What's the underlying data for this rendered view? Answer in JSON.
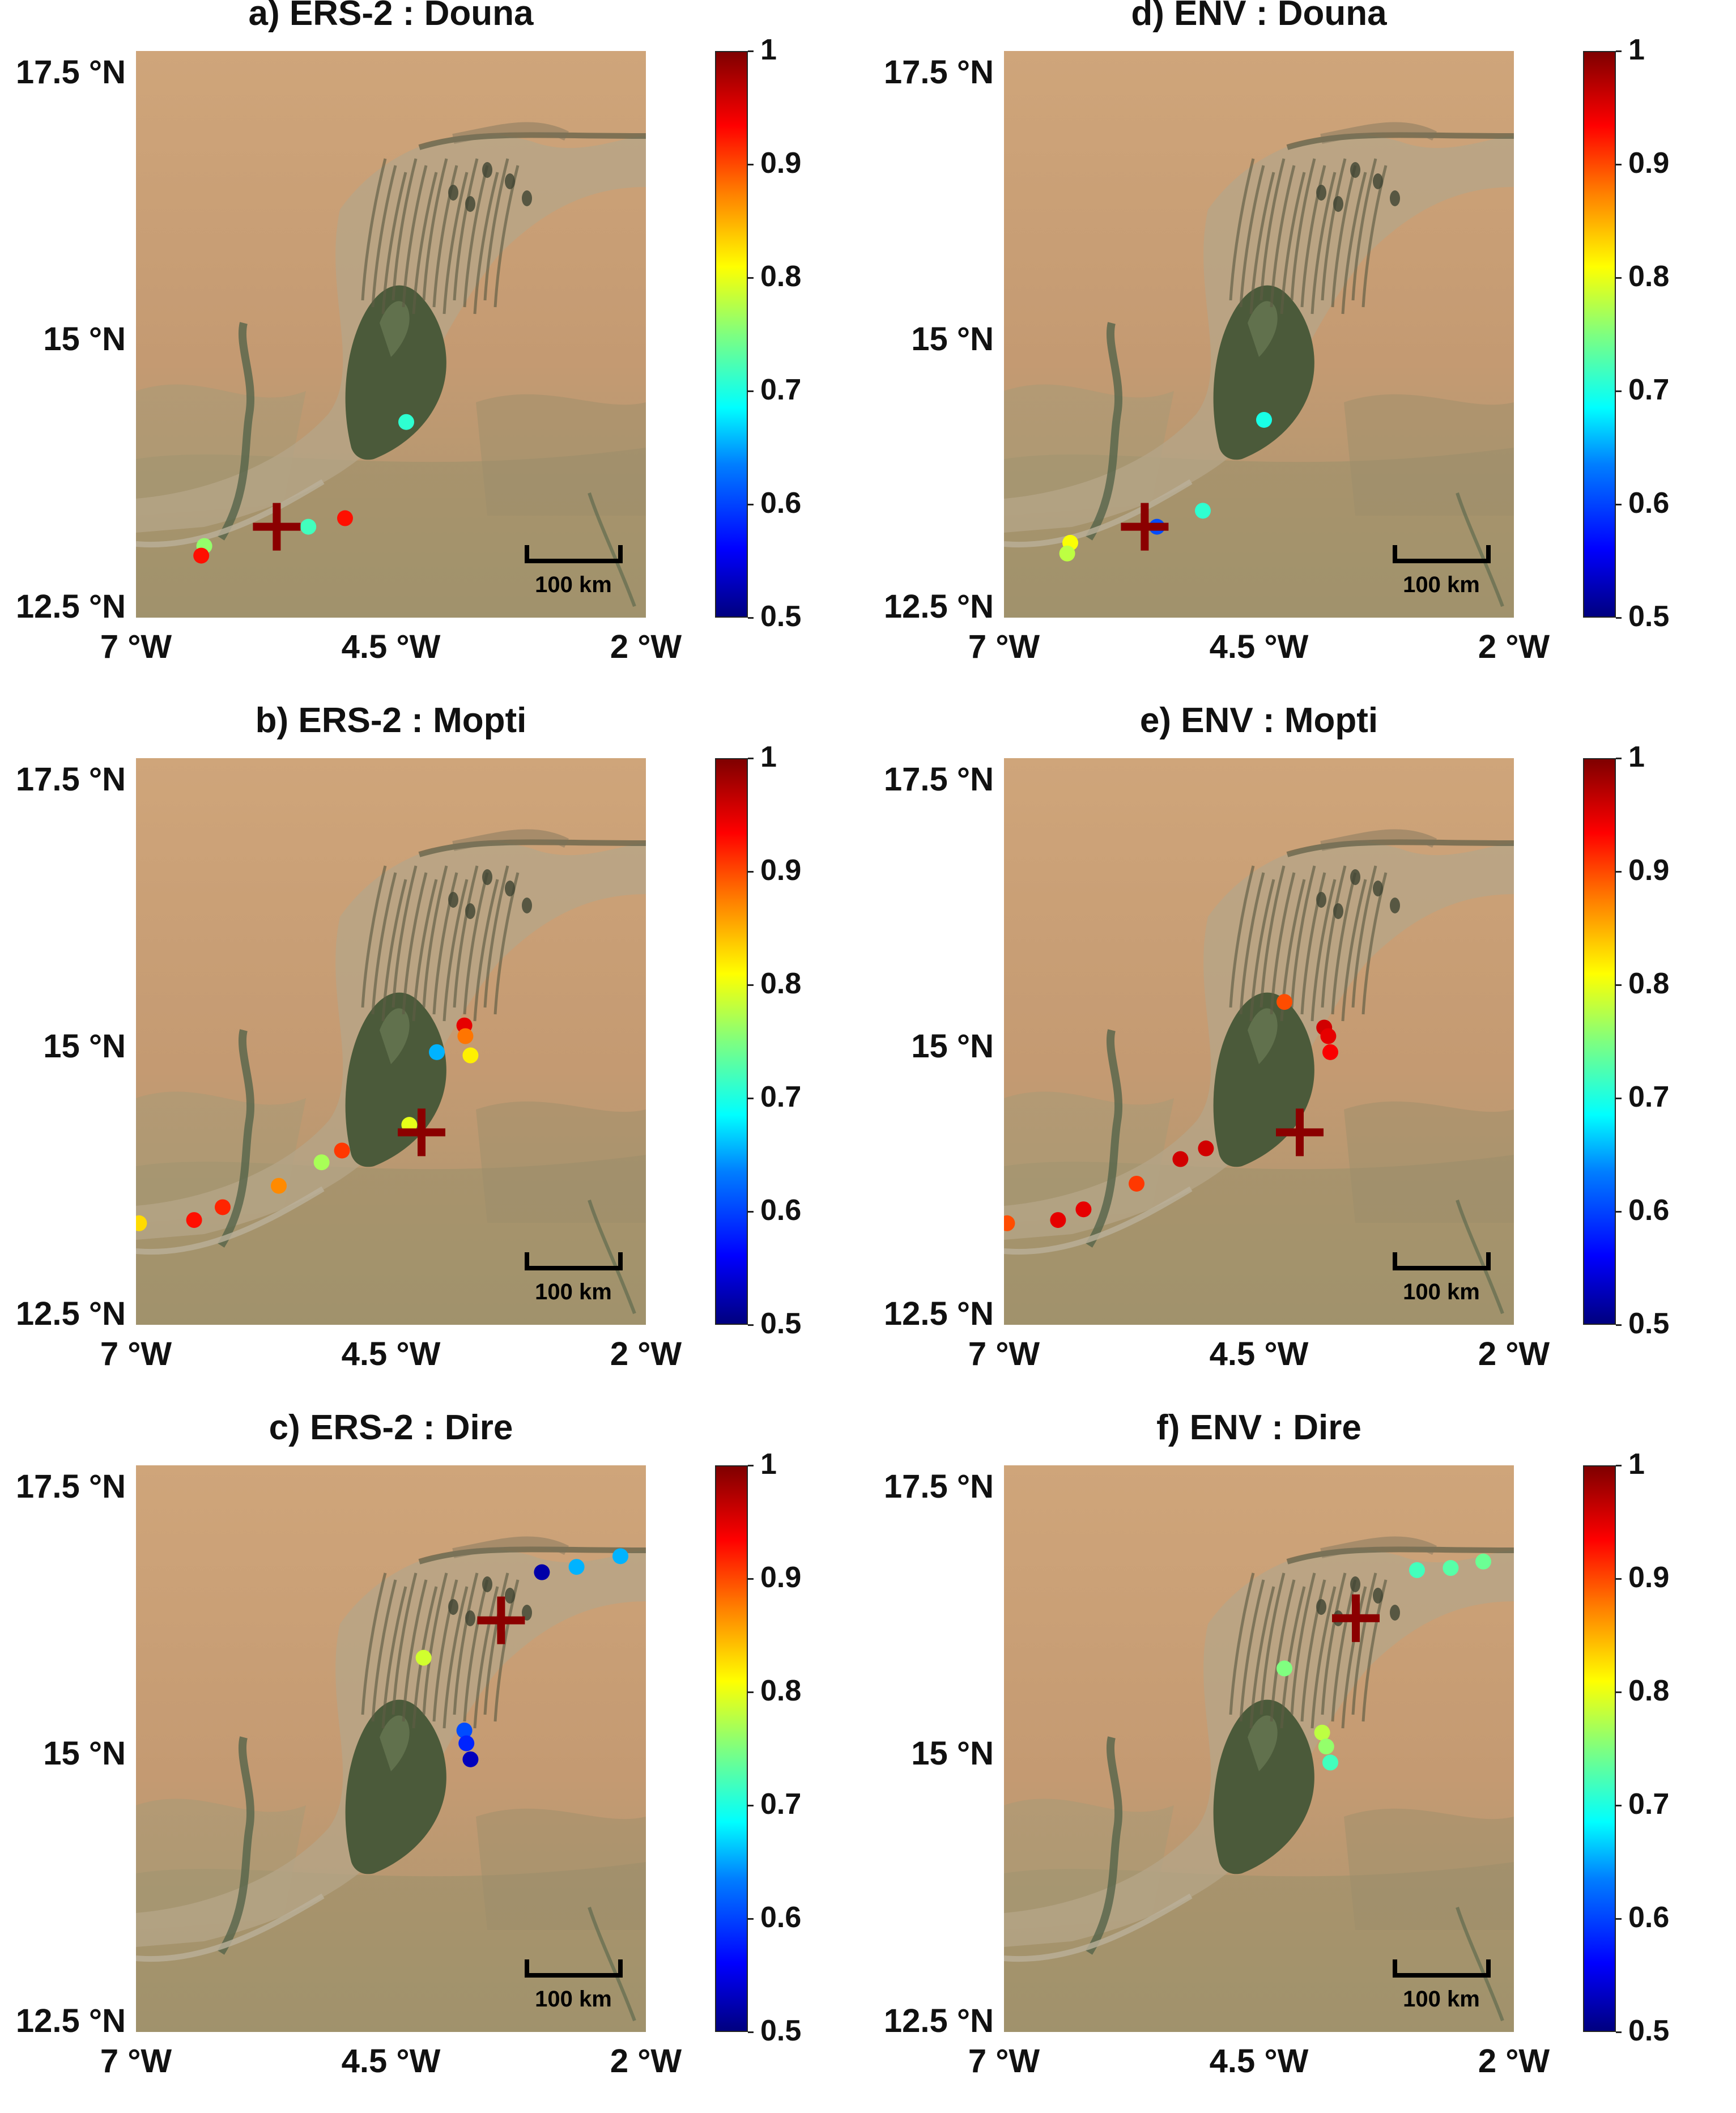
{
  "panels": [
    {
      "id": "a",
      "title": "a) ERS-2 : Douna",
      "marker": {
        "lon": -5.62,
        "lat": 13.25
      },
      "points": [
        {
          "lon": -6.33,
          "lat": 13.07,
          "v": 0.76
        },
        {
          "lon": -6.36,
          "lat": 12.98,
          "v": 0.93
        },
        {
          "lon": -5.31,
          "lat": 13.25,
          "v": 0.72
        },
        {
          "lon": -4.95,
          "lat": 13.33,
          "v": 0.93
        },
        {
          "lon": -4.35,
          "lat": 14.23,
          "v": 0.71
        }
      ]
    },
    {
      "id": "b",
      "title": "b) ERS-2 : Mopti",
      "marker": {
        "lon": -4.2,
        "lat": 14.2
      },
      "points": [
        {
          "lon": -6.97,
          "lat": 13.35,
          "v": 0.83
        },
        {
          "lon": -6.43,
          "lat": 13.38,
          "v": 0.93
        },
        {
          "lon": -6.15,
          "lat": 13.5,
          "v": 0.92
        },
        {
          "lon": -5.6,
          "lat": 13.7,
          "v": 0.87
        },
        {
          "lon": -5.18,
          "lat": 13.92,
          "v": 0.77
        },
        {
          "lon": -4.98,
          "lat": 14.03,
          "v": 0.91
        },
        {
          "lon": -4.32,
          "lat": 14.27,
          "v": 0.8
        },
        {
          "lon": -4.05,
          "lat": 14.95,
          "v": 0.65
        },
        {
          "lon": -3.78,
          "lat": 15.2,
          "v": 0.95
        },
        {
          "lon": -3.77,
          "lat": 15.1,
          "v": 0.88
        },
        {
          "lon": -3.72,
          "lat": 14.92,
          "v": 0.82
        }
      ]
    },
    {
      "id": "c",
      "title": "c) ERS-2 : Dire",
      "marker": {
        "lon": -3.42,
        "lat": 16.25
      },
      "points": [
        {
          "lon": -3.02,
          "lat": 16.7,
          "v": 0.52
        },
        {
          "lon": -2.68,
          "lat": 16.75,
          "v": 0.65
        },
        {
          "lon": -2.25,
          "lat": 16.85,
          "v": 0.65
        },
        {
          "lon": -4.18,
          "lat": 15.9,
          "v": 0.79
        },
        {
          "lon": -3.78,
          "lat": 15.22,
          "v": 0.6
        },
        {
          "lon": -3.76,
          "lat": 15.1,
          "v": 0.58
        },
        {
          "lon": -3.72,
          "lat": 14.95,
          "v": 0.53
        }
      ]
    },
    {
      "id": "d",
      "title": "d) ENV : Douna",
      "marker": {
        "lon": -5.62,
        "lat": 13.25
      },
      "points": [
        {
          "lon": -6.35,
          "lat": 13.1,
          "v": 0.81
        },
        {
          "lon": -6.38,
          "lat": 13.0,
          "v": 0.78
        },
        {
          "lon": -5.5,
          "lat": 13.25,
          "v": 0.6
        },
        {
          "lon": -5.05,
          "lat": 13.4,
          "v": 0.71
        },
        {
          "lon": -4.45,
          "lat": 14.25,
          "v": 0.7
        }
      ]
    },
    {
      "id": "e",
      "title": "e) ENV : Mopti",
      "marker": {
        "lon": -4.1,
        "lat": 14.2
      },
      "points": [
        {
          "lon": -6.97,
          "lat": 13.35,
          "v": 0.9
        },
        {
          "lon": -6.47,
          "lat": 13.38,
          "v": 0.95
        },
        {
          "lon": -6.22,
          "lat": 13.48,
          "v": 0.95
        },
        {
          "lon": -5.7,
          "lat": 13.72,
          "v": 0.91
        },
        {
          "lon": -5.27,
          "lat": 13.95,
          "v": 0.96
        },
        {
          "lon": -5.02,
          "lat": 14.05,
          "v": 0.96
        },
        {
          "lon": -4.25,
          "lat": 15.42,
          "v": 0.9
        },
        {
          "lon": -3.86,
          "lat": 15.18,
          "v": 0.96
        },
        {
          "lon": -3.82,
          "lat": 15.1,
          "v": 0.95
        },
        {
          "lon": -3.8,
          "lat": 14.95,
          "v": 0.94
        }
      ]
    },
    {
      "id": "f",
      "title": "f) ENV : Dire",
      "marker": {
        "lon": -3.55,
        "lat": 16.27
      },
      "points": [
        {
          "lon": -2.95,
          "lat": 16.72,
          "v": 0.72
        },
        {
          "lon": -2.62,
          "lat": 16.74,
          "v": 0.73
        },
        {
          "lon": -2.3,
          "lat": 16.8,
          "v": 0.74
        },
        {
          "lon": -4.25,
          "lat": 15.8,
          "v": 0.75
        },
        {
          "lon": -3.88,
          "lat": 15.2,
          "v": 0.78
        },
        {
          "lon": -3.84,
          "lat": 15.07,
          "v": 0.76
        },
        {
          "lon": -3.8,
          "lat": 14.92,
          "v": 0.72
        }
      ]
    }
  ],
  "axes": {
    "x_ticks": [
      {
        "lon": -7,
        "label": "7 °W"
      },
      {
        "lon": -4.5,
        "label": "4.5 °W"
      },
      {
        "lon": -2,
        "label": "2 °W"
      }
    ],
    "y_ticks": [
      {
        "lat": 17.5,
        "label": "17.5 °N"
      },
      {
        "lat": 15,
        "label": "15 °N"
      },
      {
        "lat": 12.5,
        "label": "12.5 °N"
      }
    ],
    "lon_range": [
      -7,
      -2
    ],
    "lat_range": [
      12.4,
      17.7
    ]
  },
  "colorbar": {
    "min": 0.5,
    "max": 1,
    "ticks": [
      {
        "v": 1,
        "label": "1"
      },
      {
        "v": 0.9,
        "label": "0.9"
      },
      {
        "v": 0.8,
        "label": "0.8"
      },
      {
        "v": 0.7,
        "label": "0.7"
      },
      {
        "v": 0.6,
        "label": "0.6"
      },
      {
        "v": 0.5,
        "label": "0.5"
      }
    ],
    "colormap": "jet"
  },
  "scale_bar": {
    "label": "100 km"
  },
  "colors": {
    "marker": "#8b0000",
    "wetland": "#4b5a3a",
    "sand": "#c9a57d",
    "river": "#b8ab96"
  }
}
